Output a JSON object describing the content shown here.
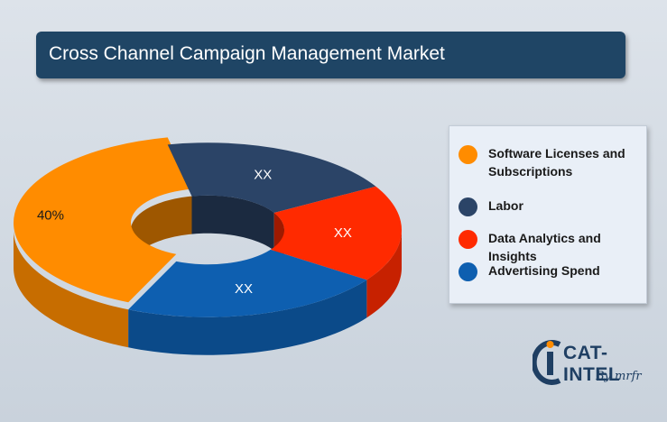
{
  "title": "Cross Channel Campaign Management Market",
  "chart_data": {
    "type": "pie",
    "title": "Cross Channel Campaign Management Market",
    "categories": [
      "Software Licenses and Subscriptions",
      "Labor",
      "Data Analytics and Insights",
      "Advertising Spend"
    ],
    "values": [
      40,
      20,
      18,
      22
    ],
    "data_labels": [
      "40%",
      "XX",
      "XX",
      "XX"
    ],
    "colors": [
      "#ff8c00",
      "#2b4467",
      "#ff2a00",
      "#0e5fb0"
    ],
    "legend_position": "right"
  },
  "legend": [
    {
      "label": "Software Licenses and Subscriptions",
      "color": "#ff8c00"
    },
    {
      "label": "Labor",
      "color": "#2b4467"
    },
    {
      "label": "Data Analytics and Insights",
      "color": "#ff2a00"
    },
    {
      "label": "Advertising Spend",
      "color": "#0e5fb0"
    }
  ],
  "logo": {
    "name": "CAT-INTEL",
    "sub": "By mrfr"
  }
}
